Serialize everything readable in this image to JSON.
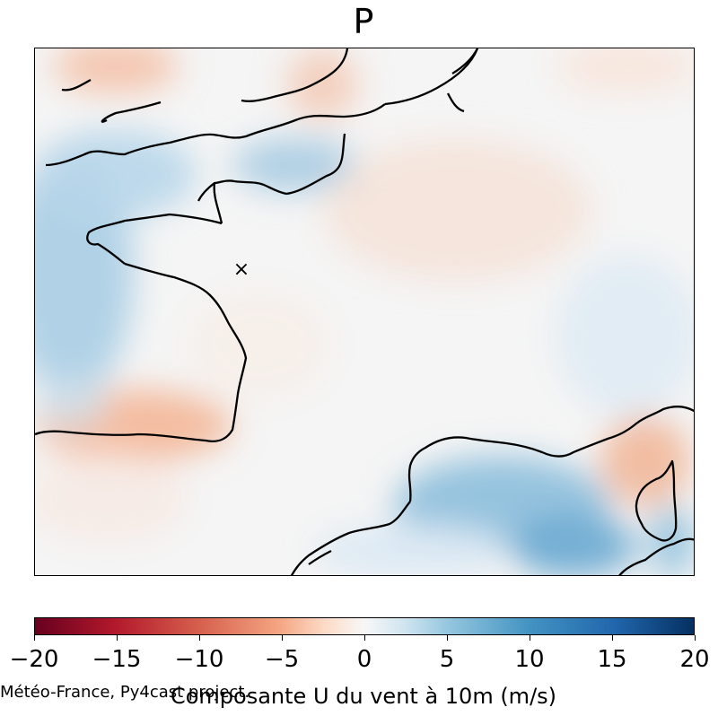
{
  "title": "P",
  "colorbar": {
    "label": "Composante U du vent à 10m (m/s)",
    "min": -20,
    "max": 20,
    "colormap": "RdBu",
    "ticks": [
      "−20",
      "−15",
      "−10",
      "−5",
      "0",
      "5",
      "10",
      "15",
      "20"
    ],
    "colors": {
      "low": "#67001f",
      "midlow": "#f4a582",
      "center": "#f7f7f7",
      "midhigh": "#92c5de",
      "high": "#053061"
    }
  },
  "credit": "Météo-France, Py4cast project.",
  "map": {
    "region": "France and surrounding seas",
    "marker": "×"
  }
}
